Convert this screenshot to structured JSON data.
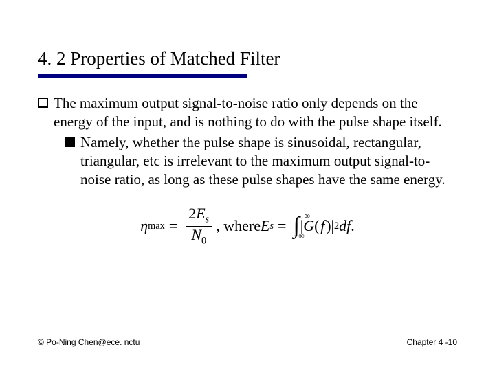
{
  "title": "4. 2 Properties of Matched Filter",
  "bullets": {
    "main": "The maximum output signal-to-noise ratio only depends on the energy of the input, and is nothing to do with the pulse shape itself.",
    "sub": "Namely, whether the pulse shape is sinusoidal, rectangular, triangular, etc is irrelevant to the maximum output signal-to-noise ratio, as long as these pulse shapes have the same energy."
  },
  "equation": {
    "eta": "η",
    "eta_sub": "max",
    "eq": "=",
    "frac_num_coef": "2",
    "frac_num_sym": "E",
    "frac_num_sub": "s",
    "frac_den_sym": "N",
    "frac_den_sub": "0",
    "where": ", where ",
    "Es_sym": "E",
    "Es_sub": "s",
    "int_top": "∞",
    "int_bot": "−∞",
    "bar1": "|",
    "G": "G",
    "paren_open": "(",
    "f": "f",
    "paren_close": ")",
    "bar2": "|",
    "sq": "2",
    "df": " df",
    "period": "."
  },
  "footer": {
    "left": "© Po-Ning Chen@ece. nctu",
    "right": "Chapter 4 -10"
  },
  "colors": {
    "rule": "#000080",
    "text": "#000000",
    "background": "#ffffff"
  }
}
